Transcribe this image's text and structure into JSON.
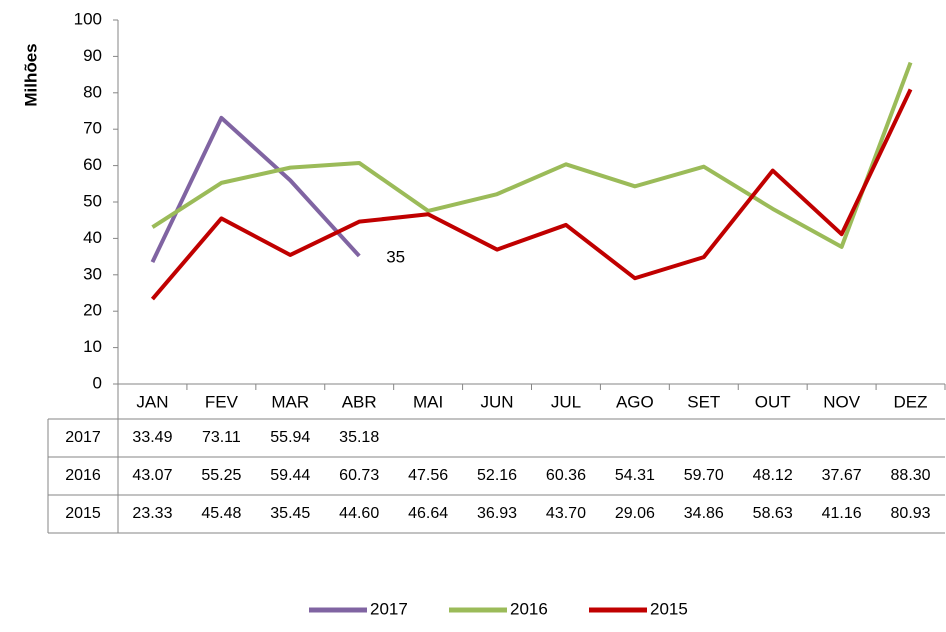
{
  "chart_data": {
    "type": "line",
    "y_label": "Milhões",
    "categories": [
      "JAN",
      "FEV",
      "MAR",
      "ABR",
      "MAI",
      "JUN",
      "JUL",
      "AGO",
      "SET",
      "OUT",
      "NOV",
      "DEZ"
    ],
    "series": [
      {
        "name": "2017",
        "color": "#8064a2",
        "values": [
          33.49,
          73.11,
          55.94,
          35.18,
          null,
          null,
          null,
          null,
          null,
          null,
          null,
          null
        ],
        "value_labels": [
          "33.49",
          "73.11",
          "55.94",
          "35.18",
          null,
          null,
          null,
          null,
          null,
          null,
          null,
          null
        ]
      },
      {
        "name": "2016",
        "color": "#9bbb59",
        "values": [
          43.07,
          55.25,
          59.44,
          60.73,
          47.56,
          52.16,
          60.36,
          54.31,
          59.7,
          48.12,
          37.67,
          88.3
        ],
        "value_labels": [
          "43.07",
          "55.25",
          "59.44",
          "60.73",
          "47.56",
          "52.16",
          "60.36",
          "54.31",
          "59.70",
          "48.12",
          "37.67",
          "88.30"
        ]
      },
      {
        "name": "2015",
        "color": "#c00000",
        "values": [
          23.33,
          45.48,
          35.45,
          44.6,
          46.64,
          36.93,
          43.7,
          29.06,
          34.86,
          58.63,
          41.16,
          80.93
        ],
        "value_labels": [
          "23.33",
          "45.48",
          "35.45",
          "44.60",
          "46.64",
          "36.93",
          "43.70",
          "29.06",
          "34.86",
          "58.63",
          "41.16",
          "80.93"
        ]
      }
    ],
    "annotation": "35",
    "ylim": [
      0,
      100
    ],
    "yticks": [
      0,
      10,
      20,
      30,
      40,
      50,
      60,
      70,
      80,
      90,
      100
    ],
    "grid": false,
    "legend": "bottom"
  }
}
